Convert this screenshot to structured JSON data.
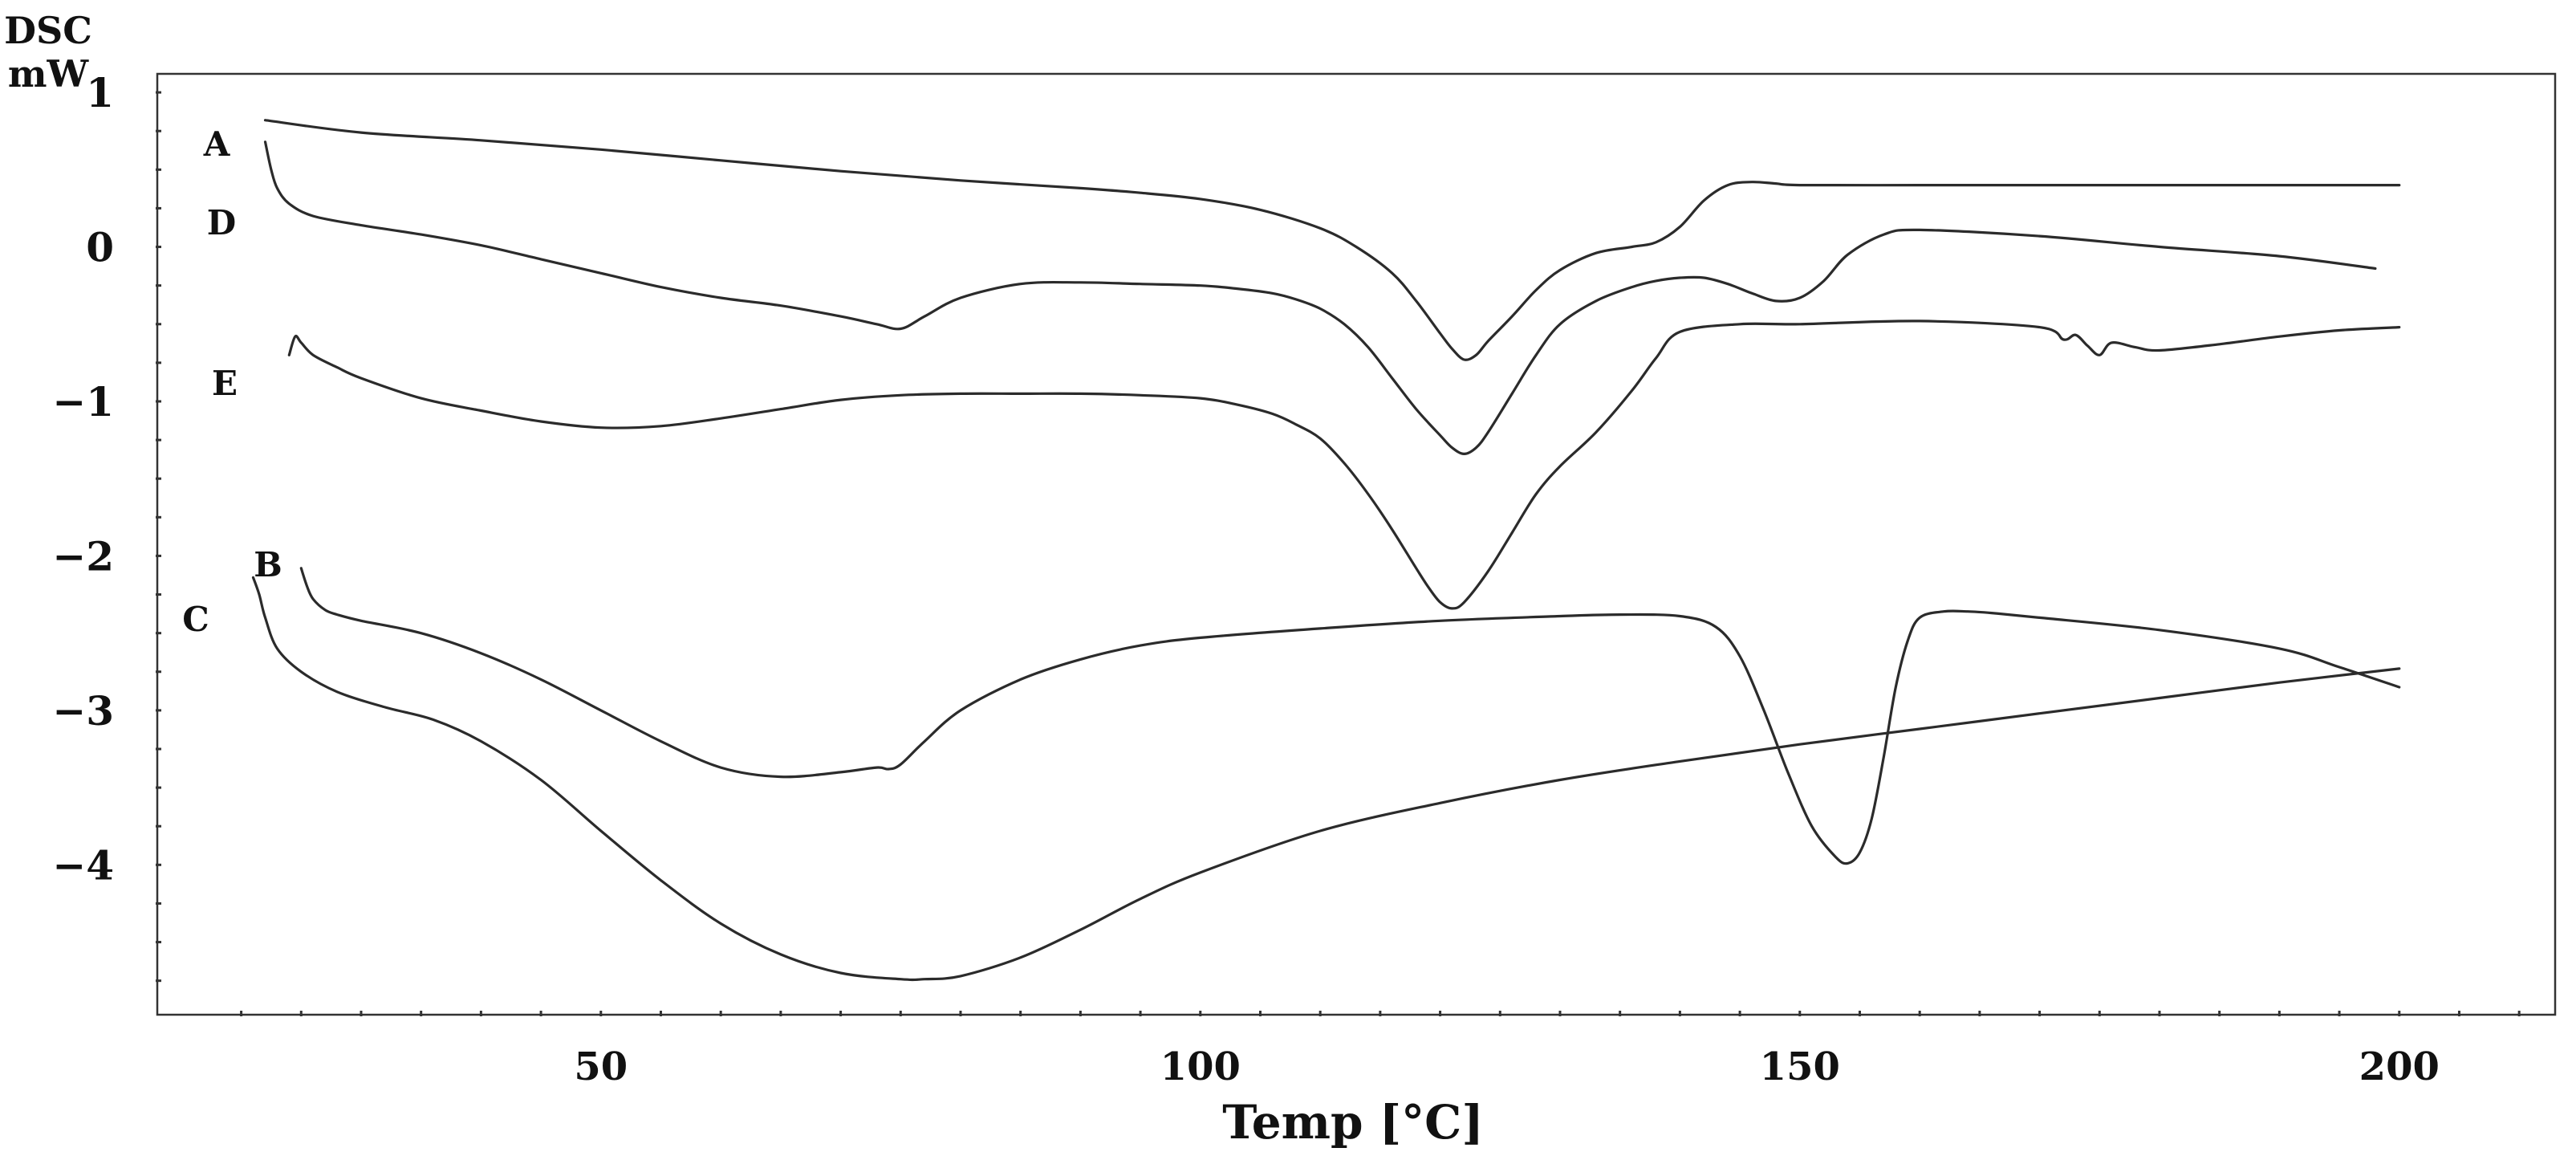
{
  "chart_data": {
    "type": "line",
    "title": "",
    "ylabel_lines": [
      "DSC",
      "mW"
    ],
    "xlabel": "Temp [°C]",
    "xlim": [
      13,
      213
    ],
    "ylim": [
      -4.97,
      1.12
    ],
    "xticks": [
      50,
      100,
      150,
      200
    ],
    "yticks": [
      {
        "value": 1,
        "label": "1"
      },
      {
        "value": 0,
        "label": "0"
      },
      {
        "value": -1,
        "label": "−1"
      },
      {
        "value": -2,
        "label": "−2"
      },
      {
        "value": -3,
        "label": "−3"
      },
      {
        "value": -4,
        "label": "−4"
      }
    ],
    "grid": false,
    "series": [
      {
        "name": "A",
        "x": [
          22,
          30,
          40,
          50,
          60,
          70,
          80,
          90,
          95,
          100,
          105,
          110,
          113,
          116,
          118,
          120,
          121,
          122,
          123,
          124,
          126,
          128,
          130,
          133,
          136,
          138,
          140,
          142,
          144,
          146,
          148,
          150,
          160,
          170,
          180,
          190,
          200
        ],
        "y": [
          0.82,
          0.74,
          0.69,
          0.63,
          0.56,
          0.49,
          0.43,
          0.38,
          0.35,
          0.31,
          0.24,
          0.12,
          0.0,
          -0.17,
          -0.35,
          -0.56,
          -0.66,
          -0.73,
          -0.7,
          -0.61,
          -0.45,
          -0.28,
          -0.15,
          -0.04,
          0.0,
          0.03,
          0.13,
          0.3,
          0.4,
          0.42,
          0.41,
          0.4,
          0.4,
          0.4,
          0.4,
          0.4,
          0.4
        ]
      },
      {
        "name": "D",
        "x": [
          22,
          22.5,
          23,
          24,
          26,
          30,
          35,
          40,
          45,
          50,
          55,
          60,
          65,
          70,
          73,
          75,
          77,
          80,
          85,
          90,
          95,
          100,
          103,
          106,
          108,
          110,
          112,
          114,
          116,
          118,
          120,
          121,
          122,
          123,
          124,
          126,
          128,
          130,
          133,
          136,
          138,
          140,
          142,
          144,
          146,
          148,
          150,
          152,
          154,
          157,
          160,
          170,
          180,
          190,
          198
        ],
        "y": [
          0.68,
          0.5,
          0.38,
          0.28,
          0.2,
          0.14,
          0.08,
          0.01,
          -0.08,
          -0.17,
          -0.26,
          -0.33,
          -0.38,
          -0.45,
          -0.5,
          -0.53,
          -0.45,
          -0.33,
          -0.24,
          -0.23,
          -0.24,
          -0.25,
          -0.27,
          -0.3,
          -0.34,
          -0.4,
          -0.5,
          -0.65,
          -0.85,
          -1.05,
          -1.22,
          -1.3,
          -1.34,
          -1.3,
          -1.2,
          -0.95,
          -0.7,
          -0.5,
          -0.35,
          -0.26,
          -0.22,
          -0.2,
          -0.2,
          -0.24,
          -0.3,
          -0.35,
          -0.33,
          -0.22,
          -0.05,
          0.08,
          0.11,
          0.07,
          0.0,
          -0.06,
          -0.14
        ]
      },
      {
        "name": "E",
        "x": [
          24,
          24.5,
          25,
          26,
          28,
          30,
          35,
          40,
          45,
          50,
          55,
          60,
          65,
          70,
          75,
          80,
          85,
          90,
          95,
          100,
          103,
          106,
          108,
          110,
          112,
          114,
          116,
          118,
          119,
          120,
          121,
          122,
          124,
          126,
          128,
          130,
          133,
          136,
          138,
          140,
          145,
          150,
          160,
          170,
          172,
          173,
          174,
          175,
          176,
          178,
          180,
          185,
          190,
          195,
          200
        ],
        "y": [
          -0.7,
          -0.58,
          -0.62,
          -0.7,
          -0.78,
          -0.85,
          -0.98,
          -1.06,
          -1.13,
          -1.17,
          -1.16,
          -1.11,
          -1.05,
          -0.99,
          -0.96,
          -0.95,
          -0.95,
          -0.95,
          -0.96,
          -0.98,
          -1.02,
          -1.08,
          -1.15,
          -1.24,
          -1.4,
          -1.6,
          -1.83,
          -2.08,
          -2.2,
          -2.3,
          -2.34,
          -2.3,
          -2.1,
          -1.85,
          -1.6,
          -1.42,
          -1.2,
          -0.93,
          -0.72,
          -0.55,
          -0.5,
          -0.5,
          -0.48,
          -0.52,
          -0.6,
          -0.57,
          -0.64,
          -0.7,
          -0.62,
          -0.65,
          -0.67,
          -0.63,
          -0.58,
          -0.54,
          -0.52
        ]
      },
      {
        "name": "B",
        "x": [
          25,
          25.5,
          26,
          27,
          28,
          30,
          35,
          40,
          45,
          50,
          55,
          60,
          65,
          70,
          73,
          74,
          75,
          77,
          80,
          85,
          90,
          95,
          100,
          110,
          120,
          130,
          135,
          140,
          143,
          145,
          147,
          149,
          151,
          153,
          154,
          155,
          156,
          157,
          158,
          159,
          160,
          162,
          164,
          166,
          170,
          180,
          190,
          195,
          200
        ],
        "y": [
          -2.08,
          -2.2,
          -2.28,
          -2.35,
          -2.38,
          -2.42,
          -2.5,
          -2.63,
          -2.8,
          -3.0,
          -3.2,
          -3.37,
          -3.43,
          -3.4,
          -3.37,
          -3.38,
          -3.35,
          -3.2,
          -3.0,
          -2.8,
          -2.67,
          -2.58,
          -2.53,
          -2.47,
          -2.42,
          -2.39,
          -2.38,
          -2.39,
          -2.46,
          -2.65,
          -3.0,
          -3.4,
          -3.75,
          -3.95,
          -3.99,
          -3.92,
          -3.7,
          -3.3,
          -2.85,
          -2.55,
          -2.4,
          -2.36,
          -2.36,
          -2.37,
          -2.4,
          -2.48,
          -2.6,
          -2.72,
          -2.85
        ]
      },
      {
        "name": "C",
        "x": [
          21,
          21.5,
          22,
          23,
          25,
          28,
          32,
          36,
          40,
          45,
          50,
          55,
          60,
          65,
          70,
          75,
          77,
          80,
          85,
          90,
          95,
          100,
          110,
          120,
          130,
          140,
          150,
          160,
          170,
          180,
          190,
          200
        ],
        "y": [
          -2.14,
          -2.25,
          -2.4,
          -2.6,
          -2.75,
          -2.88,
          -2.98,
          -3.06,
          -3.2,
          -3.45,
          -3.78,
          -4.1,
          -4.38,
          -4.58,
          -4.7,
          -4.74,
          -4.74,
          -4.72,
          -4.6,
          -4.42,
          -4.22,
          -4.05,
          -3.78,
          -3.6,
          -3.45,
          -3.33,
          -3.22,
          -3.12,
          -3.02,
          -2.92,
          -2.82,
          -2.73
        ]
      }
    ],
    "series_labels": [
      {
        "text": "A",
        "for": "A"
      },
      {
        "text": "D",
        "for": "D"
      },
      {
        "text": "E",
        "for": "E"
      },
      {
        "text": "B",
        "for": "B"
      },
      {
        "text": "C",
        "for": "C"
      }
    ]
  }
}
